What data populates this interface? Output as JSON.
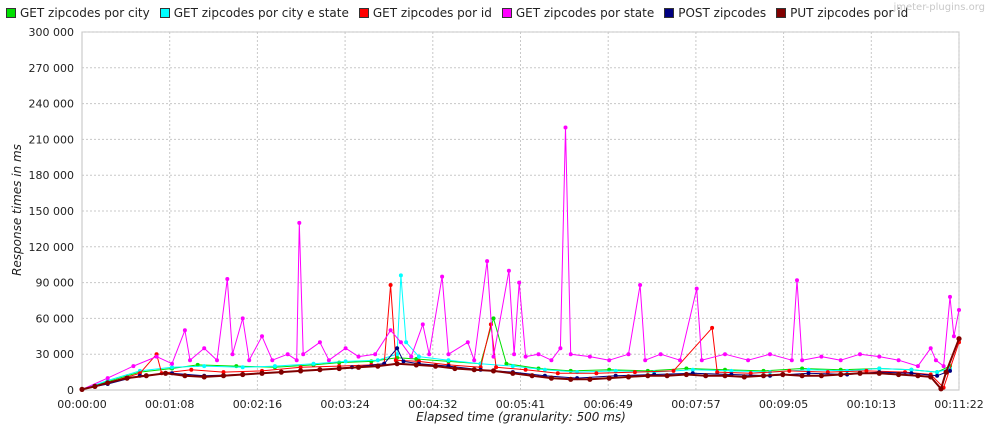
{
  "chart_data": {
    "type": "line",
    "xlabel": "Elapsed time (granularity: 500 ms)",
    "ylabel": "Response times in ms",
    "watermark": "jmeter-plugins.org",
    "ylim": [
      0,
      300000
    ],
    "xlim_seconds": [
      0,
      682
    ],
    "y_ticks": [
      "0",
      "30 000",
      "60 000",
      "90 000",
      "120 000",
      "150 000",
      "180 000",
      "210 000",
      "240 000",
      "270 000",
      "300 000"
    ],
    "x_ticks": [
      "00:00:00",
      "00:01:08",
      "00:02:16",
      "00:03:24",
      "00:04:32",
      "00:05:41",
      "00:06:49",
      "00:07:57",
      "00:09:05",
      "00:10:13",
      "00:11:22"
    ],
    "grid": true,
    "legend_position": "top-left",
    "series": [
      {
        "name": "GET zipcodes por city",
        "color": "#00e000",
        "points": [
          [
            0,
            500
          ],
          [
            20,
            7000
          ],
          [
            45,
            15000
          ],
          [
            70,
            18000
          ],
          [
            90,
            21000
          ],
          [
            120,
            20000
          ],
          [
            150,
            19000
          ],
          [
            180,
            21000
          ],
          [
            200,
            23000
          ],
          [
            225,
            24000
          ],
          [
            245,
            27000
          ],
          [
            260,
            26000
          ],
          [
            285,
            24000
          ],
          [
            310,
            22000
          ],
          [
            320,
            60000
          ],
          [
            330,
            22000
          ],
          [
            355,
            18000
          ],
          [
            380,
            16000
          ],
          [
            410,
            17000
          ],
          [
            440,
            16000
          ],
          [
            470,
            18000
          ],
          [
            500,
            17000
          ],
          [
            530,
            16000
          ],
          [
            560,
            18000
          ],
          [
            590,
            17000
          ],
          [
            620,
            18000
          ],
          [
            645,
            17000
          ],
          [
            665,
            15000
          ],
          [
            675,
            20000
          ]
        ]
      },
      {
        "name": "GET zipcodes por city e state",
        "color": "#00ffff",
        "points": [
          [
            0,
            500
          ],
          [
            20,
            8000
          ],
          [
            45,
            16000
          ],
          [
            70,
            19000
          ],
          [
            95,
            20000
          ],
          [
            125,
            19000
          ],
          [
            150,
            20000
          ],
          [
            180,
            22000
          ],
          [
            205,
            24000
          ],
          [
            230,
            25000
          ],
          [
            245,
            30000
          ],
          [
            248,
            96000
          ],
          [
            252,
            40000
          ],
          [
            262,
            28000
          ],
          [
            285,
            25000
          ],
          [
            310,
            22000
          ],
          [
            335,
            20000
          ],
          [
            360,
            17000
          ],
          [
            385,
            15000
          ],
          [
            415,
            16000
          ],
          [
            445,
            15000
          ],
          [
            475,
            17000
          ],
          [
            505,
            16000
          ],
          [
            535,
            15000
          ],
          [
            565,
            17000
          ],
          [
            595,
            16000
          ],
          [
            620,
            18000
          ],
          [
            645,
            17000
          ],
          [
            665,
            15000
          ],
          [
            675,
            18000
          ]
        ]
      },
      {
        "name": "GET zipcodes por id",
        "color": "#ff0000",
        "points": [
          [
            0,
            500
          ],
          [
            20,
            6000
          ],
          [
            45,
            14000
          ],
          [
            58,
            30000
          ],
          [
            62,
            14000
          ],
          [
            85,
            17000
          ],
          [
            110,
            15000
          ],
          [
            140,
            16000
          ],
          [
            170,
            19000
          ],
          [
            200,
            20000
          ],
          [
            225,
            21000
          ],
          [
            235,
            22000
          ],
          [
            240,
            88000
          ],
          [
            244,
            25000
          ],
          [
            262,
            24000
          ],
          [
            285,
            21000
          ],
          [
            310,
            19000
          ],
          [
            318,
            55000
          ],
          [
            322,
            19000
          ],
          [
            345,
            17000
          ],
          [
            370,
            14000
          ],
          [
            400,
            14000
          ],
          [
            430,
            15000
          ],
          [
            460,
            16000
          ],
          [
            490,
            52000
          ],
          [
            494,
            15000
          ],
          [
            520,
            14000
          ],
          [
            550,
            16000
          ],
          [
            580,
            15000
          ],
          [
            610,
            16000
          ],
          [
            640,
            15000
          ],
          [
            660,
            13000
          ],
          [
            670,
            2000
          ],
          [
            682,
            40000
          ]
        ]
      },
      {
        "name": "GET zipcodes por state",
        "color": "#ff00ff",
        "points": [
          [
            0,
            500
          ],
          [
            20,
            10000
          ],
          [
            40,
            20000
          ],
          [
            58,
            28000
          ],
          [
            70,
            22000
          ],
          [
            80,
            50000
          ],
          [
            84,
            25000
          ],
          [
            95,
            35000
          ],
          [
            105,
            25000
          ],
          [
            113,
            93000
          ],
          [
            117,
            30000
          ],
          [
            125,
            60000
          ],
          [
            130,
            25000
          ],
          [
            140,
            45000
          ],
          [
            148,
            25000
          ],
          [
            160,
            30000
          ],
          [
            167,
            25000
          ],
          [
            169,
            140000
          ],
          [
            172,
            30000
          ],
          [
            185,
            40000
          ],
          [
            192,
            25000
          ],
          [
            205,
            35000
          ],
          [
            215,
            28000
          ],
          [
            228,
            30000
          ],
          [
            240,
            50000
          ],
          [
            248,
            40000
          ],
          [
            256,
            28000
          ],
          [
            265,
            55000
          ],
          [
            270,
            30000
          ],
          [
            280,
            95000
          ],
          [
            285,
            30000
          ],
          [
            300,
            40000
          ],
          [
            305,
            25000
          ],
          [
            315,
            108000
          ],
          [
            320,
            28000
          ],
          [
            332,
            100000
          ],
          [
            336,
            30000
          ],
          [
            340,
            90000
          ],
          [
            345,
            28000
          ],
          [
            355,
            30000
          ],
          [
            365,
            25000
          ],
          [
            372,
            35000
          ],
          [
            376,
            220000
          ],
          [
            380,
            30000
          ],
          [
            395,
            28000
          ],
          [
            410,
            25000
          ],
          [
            425,
            30000
          ],
          [
            434,
            88000
          ],
          [
            438,
            25000
          ],
          [
            450,
            30000
          ],
          [
            465,
            25000
          ],
          [
            478,
            85000
          ],
          [
            482,
            25000
          ],
          [
            500,
            30000
          ],
          [
            518,
            25000
          ],
          [
            535,
            30000
          ],
          [
            552,
            25000
          ],
          [
            556,
            92000
          ],
          [
            560,
            25000
          ],
          [
            575,
            28000
          ],
          [
            590,
            25000
          ],
          [
            605,
            30000
          ],
          [
            620,
            28000
          ],
          [
            635,
            25000
          ],
          [
            650,
            20000
          ],
          [
            660,
            35000
          ],
          [
            664,
            25000
          ],
          [
            670,
            20000
          ],
          [
            675,
            78000
          ],
          [
            678,
            45000
          ],
          [
            682,
            67000
          ]
        ]
      },
      {
        "name": "POST zipcodes",
        "color": "#000080",
        "points": [
          [
            0,
            500
          ],
          [
            20,
            5000
          ],
          [
            45,
            12000
          ],
          [
            70,
            14000
          ],
          [
            95,
            12000
          ],
          [
            125,
            13000
          ],
          [
            155,
            15000
          ],
          [
            185,
            17000
          ],
          [
            210,
            19000
          ],
          [
            235,
            22000
          ],
          [
            245,
            35000
          ],
          [
            250,
            24000
          ],
          [
            262,
            22000
          ],
          [
            285,
            20000
          ],
          [
            310,
            17000
          ],
          [
            335,
            15000
          ],
          [
            360,
            12000
          ],
          [
            385,
            10000
          ],
          [
            415,
            12000
          ],
          [
            445,
            13000
          ],
          [
            475,
            14000
          ],
          [
            505,
            13000
          ],
          [
            535,
            12000
          ],
          [
            565,
            14000
          ],
          [
            595,
            13000
          ],
          [
            620,
            15000
          ],
          [
            645,
            14000
          ],
          [
            665,
            12000
          ],
          [
            675,
            16000
          ]
        ]
      },
      {
        "name": "PUT zipcodes por id",
        "color": "#800000",
        "points": [
          [
            0,
            500
          ],
          [
            10,
            3000
          ],
          [
            20,
            6000
          ],
          [
            35,
            10000
          ],
          [
            50,
            12000
          ],
          [
            65,
            14000
          ],
          [
            80,
            12000
          ],
          [
            95,
            11000
          ],
          [
            110,
            12000
          ],
          [
            125,
            13000
          ],
          [
            140,
            14000
          ],
          [
            155,
            15000
          ],
          [
            170,
            16000
          ],
          [
            185,
            17000
          ],
          [
            200,
            18000
          ],
          [
            215,
            19000
          ],
          [
            230,
            20000
          ],
          [
            245,
            22000
          ],
          [
            260,
            21000
          ],
          [
            275,
            20000
          ],
          [
            290,
            18000
          ],
          [
            305,
            17000
          ],
          [
            320,
            16000
          ],
          [
            335,
            14000
          ],
          [
            350,
            12000
          ],
          [
            365,
            10000
          ],
          [
            380,
            9000
          ],
          [
            395,
            9000
          ],
          [
            410,
            10000
          ],
          [
            425,
            11000
          ],
          [
            440,
            12000
          ],
          [
            455,
            12000
          ],
          [
            470,
            13000
          ],
          [
            485,
            12000
          ],
          [
            500,
            12000
          ],
          [
            515,
            11000
          ],
          [
            530,
            12000
          ],
          [
            545,
            13000
          ],
          [
            560,
            12000
          ],
          [
            575,
            12000
          ],
          [
            590,
            13000
          ],
          [
            605,
            14000
          ],
          [
            620,
            14000
          ],
          [
            635,
            13000
          ],
          [
            650,
            12000
          ],
          [
            660,
            11000
          ],
          [
            668,
            1000
          ],
          [
            672,
            15000
          ],
          [
            682,
            43000
          ]
        ]
      }
    ]
  }
}
